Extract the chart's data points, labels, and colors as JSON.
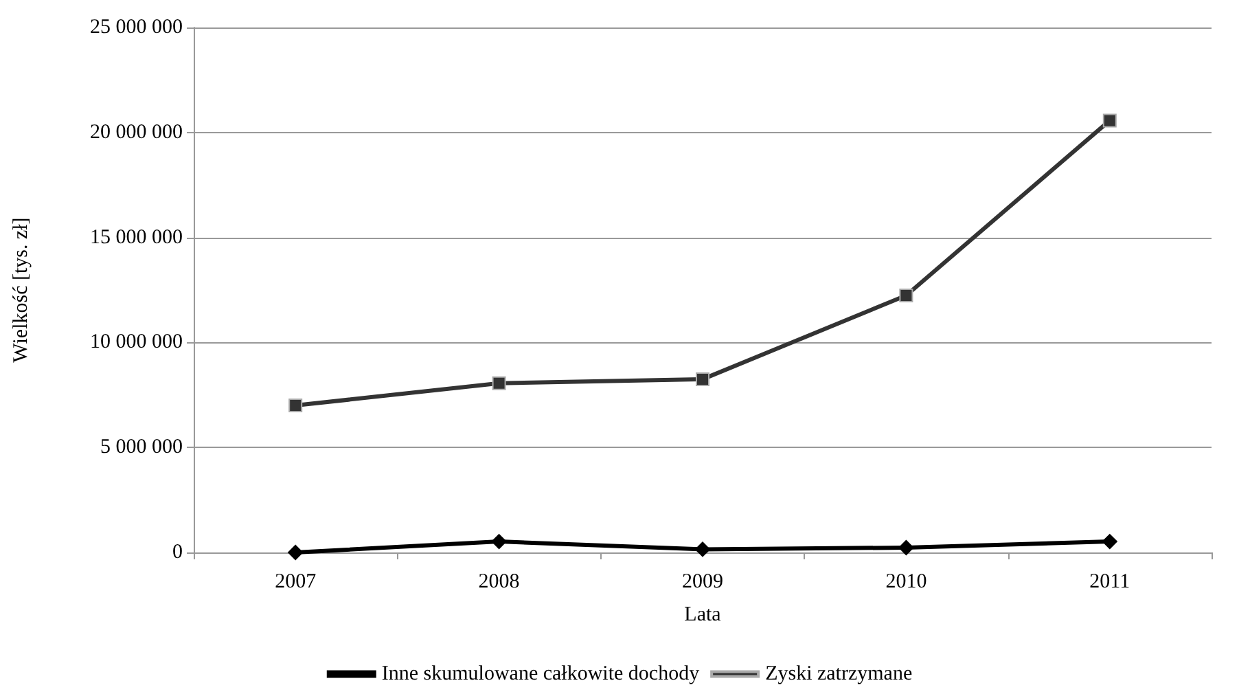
{
  "chart_data": {
    "type": "line",
    "xlabel": "Lata",
    "ylabel": "Wielkość [tys. zł]",
    "categories": [
      "2007",
      "2008",
      "2009",
      "2010",
      "2011"
    ],
    "series": [
      {
        "name": "Inne skumulowane całkowite dochody",
        "color": "#000000",
        "marker": "diamond",
        "values": [
          0,
          520000,
          150000,
          230000,
          520000
        ]
      },
      {
        "name": "Zyski zatrzymane",
        "color": "#333333",
        "marker": "square",
        "values": [
          7000000,
          8060000,
          8250000,
          12240000,
          20570000
        ]
      }
    ],
    "ylim": [
      0,
      25000000
    ],
    "yticks": [
      {
        "value": 0,
        "label": "0"
      },
      {
        "value": 5000000,
        "label": "5 000 000"
      },
      {
        "value": 10000000,
        "label": "10 000 000"
      },
      {
        "value": 15000000,
        "label": "15 000 000"
      },
      {
        "value": 20000000,
        "label": "20 000 000"
      },
      {
        "value": 25000000,
        "label": "25 000 000"
      }
    ],
    "grid": "y",
    "legend": "bottom"
  }
}
